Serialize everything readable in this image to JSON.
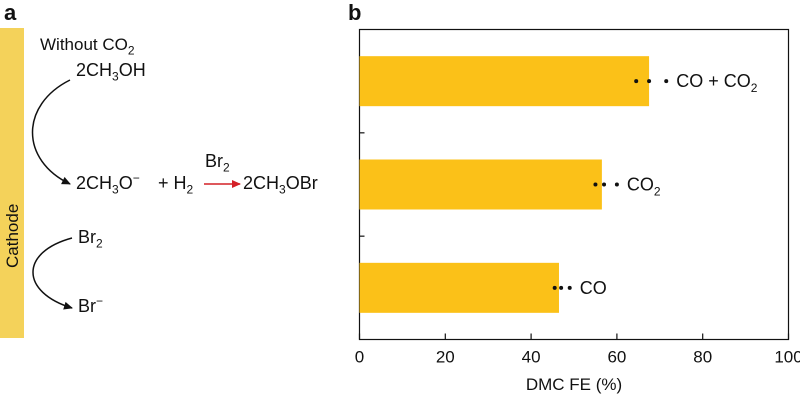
{
  "panel_a": {
    "label": "a",
    "cathode_label": "Cathode",
    "without_co2_prefix": "Without CO",
    "without_co2_sub": "2",
    "reactant": {
      "coef": "2CH",
      "sub": "3",
      "rest": "OH"
    },
    "product_methoxide": {
      "coef": "2CH",
      "sub": "3",
      "rest": "O",
      "sup": "−"
    },
    "plus_h2": {
      "text": "+ H",
      "sub": "2"
    },
    "reagent_br2": {
      "text": "Br",
      "sub": "2"
    },
    "product_methoxybromide": {
      "coef": "2CH",
      "sub": "3",
      "rest": "OBr"
    },
    "bromine": {
      "text": "Br",
      "sub": "2"
    },
    "bromide": {
      "text": "Br",
      "sup": "−"
    },
    "colors": {
      "cathode": "#f4d25a",
      "reaction_arrow": "#d42027"
    }
  },
  "panel_b": {
    "label": "b",
    "chart_data": {
      "type": "bar",
      "orientation": "horizontal",
      "categories": [
        {
          "main": "CO + CO",
          "sub": "2"
        },
        {
          "main": "CO",
          "sub": "2"
        },
        {
          "main": "CO",
          "sub": ""
        }
      ],
      "values": [
        67.5,
        56.5,
        46.5
      ],
      "points": [
        [
          64.5,
          67.5,
          71.5
        ],
        [
          55.0,
          57.0,
          60.0
        ],
        [
          45.5,
          47.0,
          49.0
        ]
      ],
      "xlabel": "DMC FE (%)",
      "xlim": [
        0,
        100
      ],
      "xticks": [
        0,
        20,
        40,
        60,
        80,
        100
      ],
      "bar_color": "#fbc118",
      "grid": false
    }
  }
}
